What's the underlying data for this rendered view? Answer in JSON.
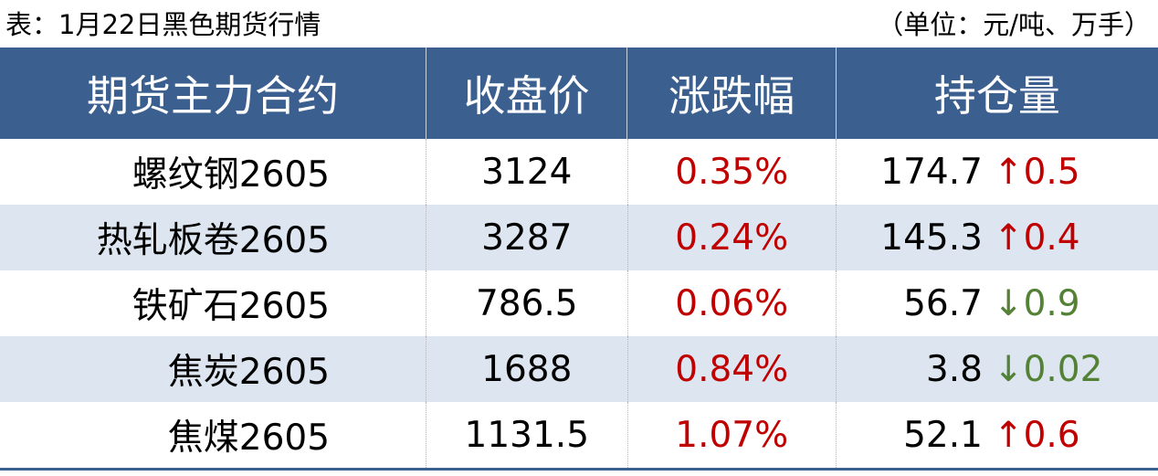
{
  "title": "表：1月22日黑色期货行情",
  "unit": "（单位：元/吨、万手）",
  "headers": [
    "期货主力合约",
    "收盘价",
    "涨跌幅",
    "持仓量"
  ],
  "colors": {
    "header_bg": "#3b5f8f",
    "stripe": "#dce5f0",
    "up": "#c00000",
    "down": "#538135"
  },
  "rows": [
    {
      "contract": "螺纹钢2605",
      "close": "3124",
      "change_pct": "0.35%",
      "open_interest": "174.7",
      "oi_change": "↑0.5",
      "direction": "up"
    },
    {
      "contract": "热轧板卷2605",
      "close": "3287",
      "change_pct": "0.24%",
      "open_interest": "145.3",
      "oi_change": "↑0.4",
      "direction": "up"
    },
    {
      "contract": "铁矿石2605",
      "close": "786.5",
      "change_pct": "0.06%",
      "open_interest": "56.7",
      "oi_change": "↓0.9",
      "direction": "down"
    },
    {
      "contract": "焦炭2605",
      "close": "1688",
      "change_pct": "0.84%",
      "open_interest": "3.8",
      "oi_change": "↓0.02",
      "direction": "down"
    },
    {
      "contract": "焦煤2605",
      "close": "1131.5",
      "change_pct": "1.07%",
      "open_interest": "52.1",
      "oi_change": "↑0.6",
      "direction": "up"
    }
  ]
}
